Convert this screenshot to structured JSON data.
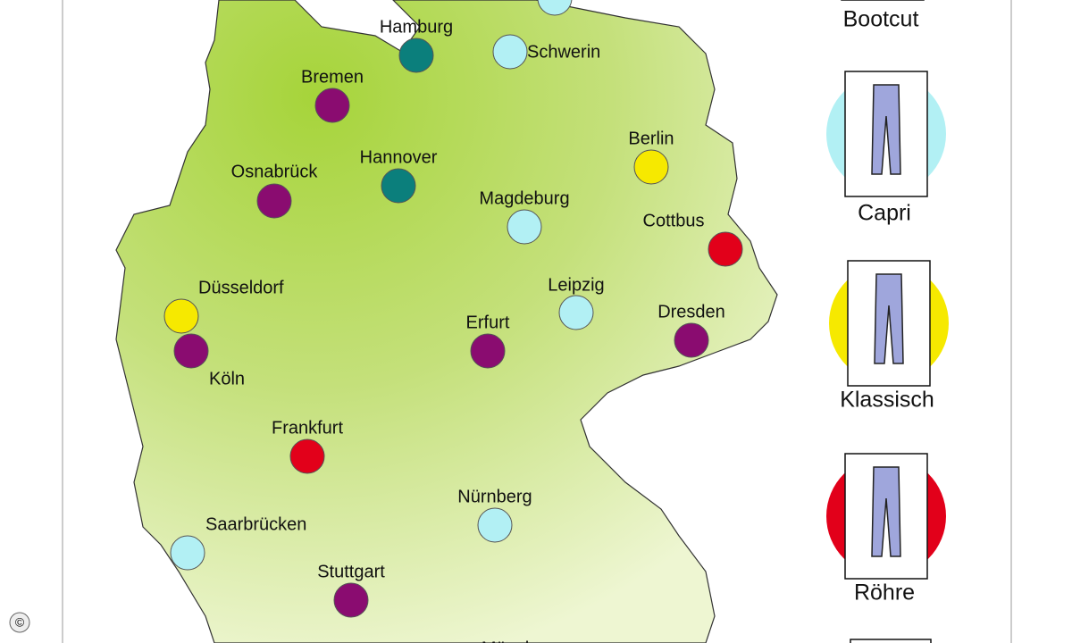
{
  "cities": [
    {
      "name": "Hamburg",
      "color": "#0b7f7c"
    },
    {
      "name": "Schwerin",
      "color": "#b2f0f4"
    },
    {
      "name": "Bremen",
      "color": "#8a0c70"
    },
    {
      "name": "Berlin",
      "color": "#f6e900"
    },
    {
      "name": "Osnabrück",
      "color": "#8a0c70"
    },
    {
      "name": "Hannover",
      "color": "#0b7f7c"
    },
    {
      "name": "Magdeburg",
      "color": "#b2f0f4"
    },
    {
      "name": "Cottbus",
      "color": "#e2001a"
    },
    {
      "name": "Düsseldorf",
      "color": "#f6e900"
    },
    {
      "name": "Köln",
      "color": "#8a0c70"
    },
    {
      "name": "Leipzig",
      "color": "#b2f0f4"
    },
    {
      "name": "Erfurt",
      "color": "#8a0c70"
    },
    {
      "name": "Dresden",
      "color": "#8a0c70"
    },
    {
      "name": "Frankfurt",
      "color": "#e2001a"
    },
    {
      "name": "Nürnberg",
      "color": "#b2f0f4"
    },
    {
      "name": "Saarbrücken",
      "color": "#b2f0f4"
    },
    {
      "name": "Stuttgart",
      "color": "#8a0c70"
    },
    {
      "name": "München"
    },
    {
      "name": null,
      "color": "#b2f0f4"
    }
  ],
  "legend": [
    {
      "label": "Bootcut"
    },
    {
      "label": "Capri",
      "color": "#b2f0f4"
    },
    {
      "label": "Klassisch",
      "color": "#f6e900"
    },
    {
      "label": "Röhre",
      "color": "#e2001a"
    }
  ],
  "copyright": "©"
}
